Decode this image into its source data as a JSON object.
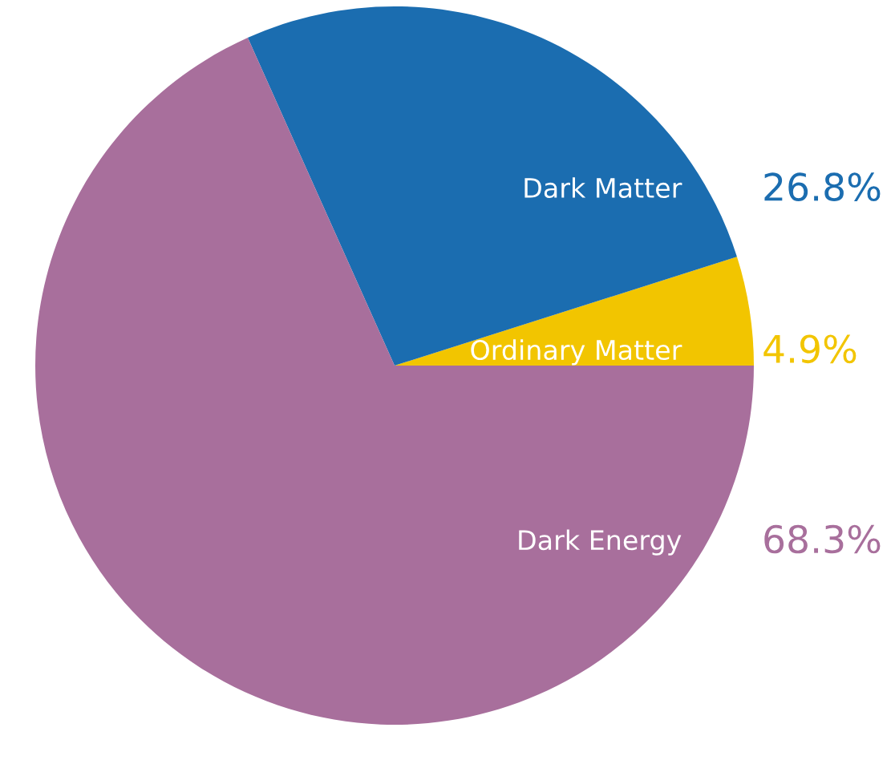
{
  "chart_data": {
    "type": "pie",
    "categories": [
      "Ordinary Matter",
      "Dark Matter",
      "Dark Energy"
    ],
    "values": [
      4.9,
      26.8,
      68.3
    ],
    "colors": [
      "#f2c500",
      "#1b6db0",
      "#a86f9c"
    ],
    "value_labels": [
      "4.9%",
      "26.8%",
      "68.3%"
    ],
    "legend": false
  }
}
